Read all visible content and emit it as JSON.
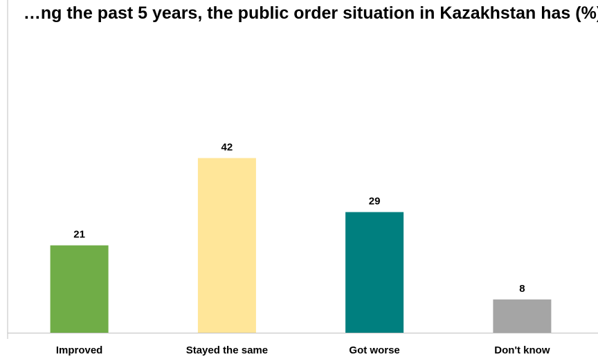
{
  "chart_data": {
    "type": "bar",
    "title": "…ng the past 5 years, the public order situation in Kazakhstan has (%)",
    "categories": [
      "Improved",
      "Stayed the same",
      "Got worse",
      "Don't know"
    ],
    "values": [
      21,
      42,
      29,
      8
    ],
    "colors": [
      "#70ad47",
      "#ffe699",
      "#007f7f",
      "#a5a5a5"
    ],
    "ylim": [
      0,
      80
    ],
    "xlabel": "",
    "ylabel": "",
    "grid": false,
    "legend": "none"
  }
}
